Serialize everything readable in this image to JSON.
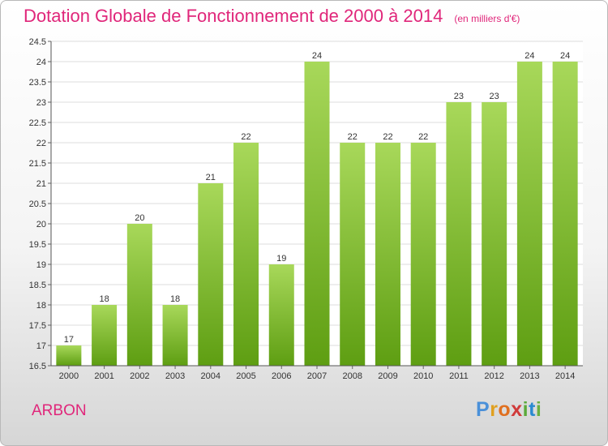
{
  "header": {
    "title": "Dotation Globale de Fonctionnement de 2000 à 2014",
    "subtitle": "(en milliers d'€)"
  },
  "footer": {
    "place": "ARBON",
    "logo": {
      "letters": [
        "P",
        "r",
        "o",
        "x",
        "i",
        "t",
        "i"
      ],
      "colors": [
        "#4a90d9",
        "#e0a020",
        "#e07020",
        "#d03a3a",
        "#5aaa3a",
        "#2a8ad0",
        "#6ab040"
      ]
    }
  },
  "colors": {
    "bar_light": "#a8d85a",
    "bar_dark": "#5e9e12",
    "title": "#e0267a"
  },
  "chart_data": {
    "type": "bar",
    "title": "Dotation Globale de Fonctionnement de 2000 à 2014",
    "subtitle": "(en milliers d'€)",
    "xlabel": "",
    "ylabel": "",
    "categories": [
      "2000",
      "2001",
      "2002",
      "2003",
      "2004",
      "2005",
      "2006",
      "2007",
      "2008",
      "2009",
      "2010",
      "2011",
      "2012",
      "2013",
      "2014"
    ],
    "values": [
      17,
      18,
      20,
      18,
      21,
      22,
      19,
      24,
      22,
      22,
      22,
      23,
      23,
      24,
      24
    ],
    "labels": [
      "17",
      "18",
      "20",
      "18",
      "21",
      "22",
      "19",
      "24",
      "22",
      "22",
      "22",
      "23",
      "23",
      "24",
      "24"
    ],
    "ylim": [
      16.5,
      24.5
    ],
    "yticks": [
      16.5,
      17,
      17.5,
      18,
      18.5,
      19,
      19.5,
      20,
      20.5,
      21,
      21.5,
      22,
      22.5,
      23,
      23.5,
      24,
      24.5
    ],
    "ytick_labels": [
      "16.5",
      "17",
      "17.5",
      "18",
      "18.5",
      "19",
      "19.5",
      "20",
      "20.5",
      "21",
      "21.5",
      "22",
      "22.5",
      "23",
      "23.5",
      "24",
      "24.5"
    ],
    "grid": true,
    "legend": "none"
  }
}
